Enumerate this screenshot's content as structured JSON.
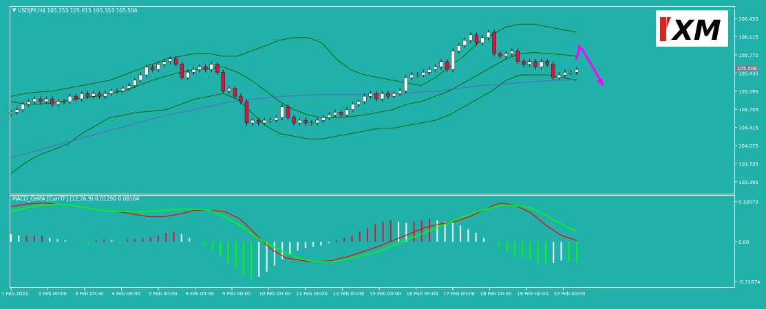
{
  "window": {
    "symbol_header": "USDJPY,H4  105.353 105.615 105.353 105.506",
    "logo_text": "XM",
    "current_price_label": "105.506"
  },
  "colors": {
    "background": "#20b2aa",
    "bull_candle": "#ffffff",
    "bear_candle": "#dc143c",
    "band": "#006400",
    "ma_long": "#6a5acd",
    "macd_main": "#ff0000",
    "macd_signal": "#00ff00",
    "arrow": "#ff00ff",
    "price_tag": "#708090"
  },
  "chart_data": [
    {
      "type": "candlestick",
      "title": "USDJPY,H4",
      "ylim": [
        103.2,
        106.65
      ],
      "y_ticks": [
        "106.455",
        "106.115",
        "105.775",
        "105.435",
        "105.095",
        "104.755",
        "104.415",
        "104.075",
        "103.735",
        "103.395"
      ],
      "x_ticks": [
        "1 Feb 2021",
        "2 Feb 00:00",
        "3 Feb 00:00",
        "4 Feb 00:00",
        "5 Feb 00:00",
        "8 Feb 00:00",
        "9 Feb 00:00",
        "10 Feb 00:00",
        "11 Feb 00:00",
        "12 Feb 00:00",
        "15 Feb 00:00",
        "16 Feb 00:00",
        "17 Feb 00:00",
        "18 Feb 00:00",
        "19 Feb 00:00",
        "22 Feb 00:00"
      ],
      "closes": [
        104.7,
        104.75,
        104.85,
        104.9,
        104.95,
        104.9,
        104.95,
        104.85,
        104.9,
        104.9,
        105.0,
        104.95,
        105.05,
        105.0,
        105.05,
        105.0,
        105.05,
        105.1,
        105.1,
        105.15,
        105.2,
        105.3,
        105.4,
        105.55,
        105.5,
        105.6,
        105.65,
        105.7,
        105.6,
        105.35,
        105.45,
        105.5,
        105.55,
        105.5,
        105.6,
        105.45,
        105.1,
        105.15,
        105.0,
        104.9,
        104.5,
        104.55,
        104.5,
        104.55,
        104.55,
        104.6,
        104.8,
        104.6,
        104.5,
        104.55,
        104.5,
        104.5,
        104.55,
        104.6,
        104.65,
        104.7,
        104.65,
        104.75,
        104.85,
        104.9,
        105.0,
        105.05,
        104.95,
        105.05,
        105.0,
        105.05,
        105.1,
        105.35,
        105.4,
        105.4,
        105.45,
        105.5,
        105.55,
        105.65,
        105.5,
        105.85,
        105.95,
        106.05,
        106.15,
        106.0,
        106.1,
        106.2,
        105.8,
        105.75,
        105.8,
        105.85,
        105.65,
        105.6,
        105.65,
        105.55,
        105.65,
        105.6,
        105.35,
        105.4,
        105.45,
        105.45,
        105.5
      ],
      "overlays": [
        {
          "name": "bollinger-upper",
          "values": [
            105.0,
            105.05,
            105.08,
            105.1,
            105.15,
            105.2,
            105.25,
            105.3,
            105.4,
            105.5,
            105.6,
            105.7,
            105.75,
            105.8,
            105.8,
            105.75,
            105.75,
            105.85,
            105.95,
            106.05,
            106.1,
            106.1,
            106.0,
            105.7,
            105.5,
            105.4,
            105.35,
            105.3,
            105.25,
            105.2,
            105.35,
            105.55,
            105.75,
            106.0,
            106.15,
            106.3,
            106.35,
            106.35,
            106.3,
            106.25,
            106.2
          ]
        },
        {
          "name": "bollinger-middle",
          "values": [
            104.9,
            104.85,
            104.85,
            104.88,
            104.92,
            104.97,
            105.0,
            105.05,
            105.1,
            105.2,
            105.3,
            105.38,
            105.45,
            105.5,
            105.52,
            105.55,
            105.45,
            105.3,
            105.1,
            104.9,
            104.75,
            104.65,
            104.6,
            104.6,
            104.62,
            104.65,
            104.7,
            104.75,
            104.85,
            104.9,
            105.0,
            105.1,
            105.25,
            105.4,
            105.55,
            105.7,
            105.8,
            105.82,
            105.8,
            105.78,
            105.75
          ]
        },
        {
          "name": "bollinger-lower",
          "values": [
            103.55,
            103.75,
            103.9,
            104.0,
            104.1,
            104.3,
            104.45,
            104.6,
            104.65,
            104.7,
            104.72,
            104.75,
            104.85,
            104.95,
            105.0,
            105.05,
            104.95,
            104.7,
            104.45,
            104.3,
            104.25,
            104.2,
            104.2,
            104.25,
            104.3,
            104.35,
            104.4,
            104.4,
            104.45,
            104.5,
            104.55,
            104.65,
            104.8,
            104.95,
            105.1,
            105.3,
            105.4,
            105.4,
            105.4,
            105.35,
            105.3
          ]
        },
        {
          "name": "moving-average",
          "values": [
            103.85,
            103.95,
            104.05,
            104.15,
            104.25,
            104.35,
            104.45,
            104.55,
            104.65,
            104.72,
            104.8,
            104.88,
            104.93,
            104.97,
            105.0,
            105.02,
            105.03,
            105.03,
            105.03,
            105.03,
            105.05,
            105.08,
            105.1,
            105.15,
            105.2,
            105.22,
            105.25,
            105.28,
            105.3,
            105.32
          ]
        }
      ]
    },
    {
      "type": "bar",
      "title": "MACD_OsMA [CurrTF] (12,26,9) 0.01290 0.08164",
      "ylim": [
        -0.34,
        0.34
      ],
      "y_ticks": [
        "0.32072",
        "0.00",
        "-0.31674"
      ],
      "histogram": [
        0.06,
        0.05,
        0.05,
        0.05,
        0.05,
        0.03,
        0.02,
        0.01,
        0.0,
        -0.01,
        -0.02,
        0.01,
        0.02,
        0.01,
        -0.01,
        0.02,
        0.02,
        0.03,
        0.04,
        0.05,
        0.07,
        0.08,
        0.06,
        0.03,
        0.0,
        -0.03,
        -0.07,
        -0.12,
        -0.17,
        -0.21,
        -0.27,
        -0.3,
        -0.28,
        -0.24,
        -0.19,
        -0.14,
        -0.1,
        -0.07,
        -0.05,
        -0.04,
        -0.03,
        -0.01,
        0.01,
        0.03,
        0.05,
        0.08,
        0.11,
        0.14,
        0.16,
        0.17,
        0.16,
        0.15,
        0.16,
        0.17,
        0.18,
        0.17,
        0.16,
        0.15,
        0.13,
        0.1,
        0.07,
        0.03,
        -0.01,
        -0.04,
        -0.08,
        -0.11,
        -0.13,
        -0.15,
        -0.17,
        -0.18,
        -0.17,
        -0.15,
        -0.16,
        -0.17
      ],
      "series": [
        {
          "name": "macd-main",
          "values": [
            0.28,
            0.3,
            0.31,
            0.3,
            0.29,
            0.27,
            0.25,
            0.24,
            0.22,
            0.2,
            0.2,
            0.22,
            0.25,
            0.25,
            0.24,
            0.18,
            0.06,
            -0.06,
            -0.13,
            -0.15,
            -0.16,
            -0.15,
            -0.12,
            -0.08,
            -0.04,
            0.01,
            0.06,
            0.11,
            0.14,
            0.16,
            0.2,
            0.26,
            0.31,
            0.29,
            0.23,
            0.13,
            0.05,
            0.01
          ]
        },
        {
          "name": "macd-signal",
          "values": [
            0.24,
            0.27,
            0.29,
            0.3,
            0.29,
            0.27,
            0.25,
            0.24,
            0.24,
            0.24,
            0.25,
            0.26,
            0.26,
            0.25,
            0.2,
            0.13,
            0.04,
            -0.03,
            -0.09,
            -0.14,
            -0.16,
            -0.16,
            -0.14,
            -0.11,
            -0.08,
            -0.03,
            0.02,
            0.07,
            0.12,
            0.17,
            0.22,
            0.26,
            0.29,
            0.29,
            0.27,
            0.21,
            0.14,
            0.08
          ]
        }
      ]
    }
  ]
}
